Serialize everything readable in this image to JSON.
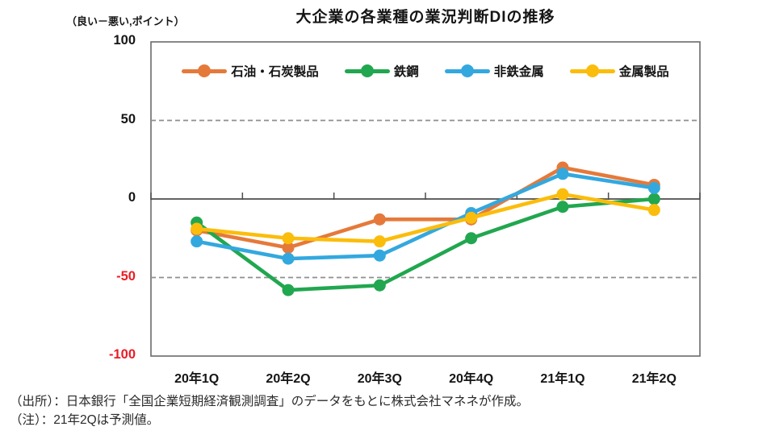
{
  "chart_data": {
    "type": "line",
    "title": "大企業の各業種の業況判断DIの推移",
    "unit_label": "（良い－悪い,ポイント）",
    "categories": [
      "20年1Q",
      "20年2Q",
      "20年3Q",
      "20年4Q",
      "21年1Q",
      "21年2Q"
    ],
    "series": [
      {
        "name": "石油・石炭製品",
        "color": "#E5793A",
        "values": [
          -20,
          -31,
          -13,
          -13,
          20,
          9
        ]
      },
      {
        "name": "鉄鋼",
        "color": "#21A74F",
        "values": [
          -15,
          -58,
          -55,
          -25,
          -5,
          0
        ]
      },
      {
        "name": "非鉄金属",
        "color": "#33A8DF",
        "values": [
          -27,
          -38,
          -36,
          -9,
          16,
          7
        ]
      },
      {
        "name": "金属製品",
        "color": "#FBBD0C",
        "values": [
          -19,
          -25,
          -27,
          -12,
          3,
          -7
        ]
      }
    ],
    "ylim": [
      -100,
      100
    ],
    "yticks": [
      100,
      50,
      0,
      -50,
      -100
    ],
    "grid": "dashed gray lines at 50 and -50, solid zero axis with category ticks, full box border",
    "legend_position": "top-inside",
    "negative_label_color": "#EC1B23"
  },
  "footer": {
    "source": "（出所）：日本銀行「全国企業短期経済観測調査」のデータをもとに株式会社マネネが作成。",
    "note": "（注）：21年2Qは予測値。"
  }
}
